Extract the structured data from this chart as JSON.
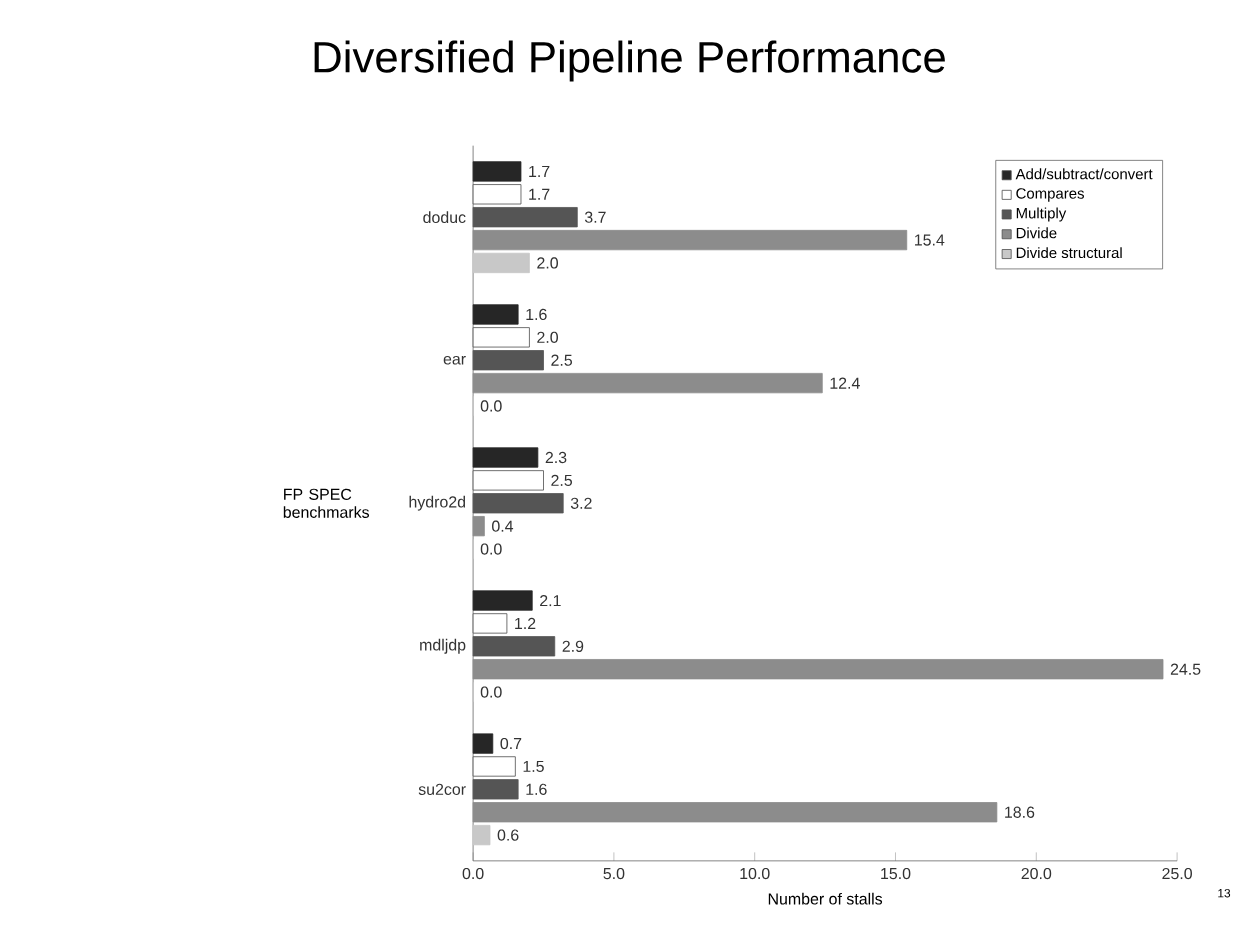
{
  "chart_data": {
    "type": "bar",
    "orientation": "horizontal",
    "title": "Diversified Pipeline Performance",
    "xlabel": "Number of stalls",
    "ylabel": "FP SPEC benchmarks",
    "categories": [
      "doduc",
      "ear",
      "hydro2d",
      "mdljdp",
      "su2cor"
    ],
    "series": [
      {
        "name": "Add/subtract/convert",
        "color": "#262626",
        "values": [
          1.7,
          1.6,
          2.3,
          2.1,
          0.7
        ],
        "value_labels": [
          "1.7",
          "1.6",
          "2.3",
          "2.1",
          "0.7"
        ]
      },
      {
        "name": "Compares",
        "color": "#ffffff",
        "values": [
          1.7,
          2.0,
          2.5,
          1.2,
          1.5
        ],
        "value_labels": [
          "1.7",
          "2.0",
          "2.5",
          "1.2",
          "1.5"
        ]
      },
      {
        "name": "Multiply",
        "color": "#555555",
        "values": [
          3.7,
          2.5,
          3.2,
          2.9,
          1.6
        ],
        "value_labels": [
          "3.7",
          "2.5",
          "3.2",
          "2.9",
          "1.6"
        ]
      },
      {
        "name": "Divide",
        "color": "#8c8c8c",
        "values": [
          15.4,
          12.4,
          0.4,
          24.5,
          18.6
        ],
        "value_labels": [
          "15.4",
          "12.4",
          "0.4",
          "24.5",
          "18.6"
        ]
      },
      {
        "name": "Divide structural",
        "color": "#c8c8c8",
        "values": [
          2.0,
          0.0,
          0.0,
          0.0,
          0.6
        ],
        "value_labels": [
          "2.0",
          "0.0",
          "0.0",
          "0.0",
          "0.6"
        ]
      }
    ],
    "xlim": [
      0,
      25
    ],
    "xticks": [
      {
        "value": 0,
        "label": "0.0"
      },
      {
        "value": 5,
        "label": "5.0"
      },
      {
        "value": 10,
        "label": "10.0"
      },
      {
        "value": 15,
        "label": "15.0"
      },
      {
        "value": 20,
        "label": "20.0"
      },
      {
        "value": 25,
        "label": "25.0"
      }
    ],
    "legend": "top right",
    "annotations": [
      "13"
    ]
  }
}
